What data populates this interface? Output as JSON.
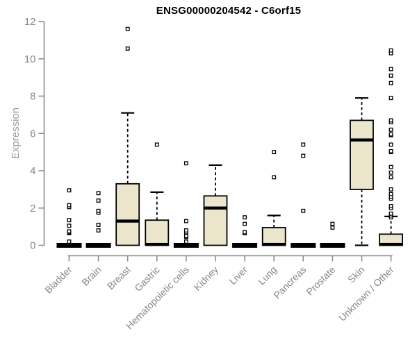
{
  "chart_data": {
    "type": "boxplot",
    "title": "ENSG00000204542 - C6orf15",
    "ylabel": "Expression",
    "xlabel": "",
    "ylim": [
      0,
      12
    ],
    "yticks": [
      0,
      2,
      4,
      6,
      8,
      10,
      12
    ],
    "grid": false,
    "legend": null,
    "categories": [
      "Bladder",
      "Brain",
      "Breast",
      "Gastric",
      "Hematopoietic cells",
      "Kidney",
      "Liver",
      "Lung",
      "Pancreas",
      "Prostate",
      "Skin",
      "Unknown / Other"
    ],
    "series": [
      {
        "label": "Bladder",
        "q1": 0,
        "median": 0,
        "q3": 0,
        "whisker_low": 0,
        "whisker_high": 0,
        "outliers": [
          0.2,
          0.65,
          0.7,
          0.75,
          1.05,
          1.35,
          2.05,
          2.15,
          2.95
        ]
      },
      {
        "label": "Brain",
        "q1": 0,
        "median": 0,
        "q3": 0,
        "whisker_low": 0,
        "whisker_high": 0,
        "outliers": [
          0.8,
          1.1,
          1.75,
          1.85,
          2.4,
          2.8
        ]
      },
      {
        "label": "Breast",
        "q1": 0,
        "median": 1.3,
        "q3": 3.3,
        "whisker_low": 0,
        "whisker_high": 7.1,
        "outliers": [
          10.55,
          11.6
        ]
      },
      {
        "label": "Gastric",
        "q1": 0,
        "median": 0.05,
        "q3": 1.35,
        "whisker_low": 0,
        "whisker_high": 2.85,
        "outliers": [
          5.4
        ]
      },
      {
        "label": "Hematopoietic cells",
        "q1": 0,
        "median": 0,
        "q3": 0,
        "whisker_low": 0,
        "whisker_high": 0,
        "outliers": [
          0.2,
          0.45,
          0.5,
          0.7,
          0.8,
          1.3,
          4.4
        ]
      },
      {
        "label": "Kidney",
        "q1": 0,
        "median": 2.0,
        "q3": 2.65,
        "whisker_low": 0,
        "whisker_high": 4.3,
        "outliers": []
      },
      {
        "label": "Liver",
        "q1": 0,
        "median": 0,
        "q3": 0,
        "whisker_low": 0,
        "whisker_high": 0,
        "outliers": [
          0.65,
          0.7,
          1.15,
          1.5
        ]
      },
      {
        "label": "Lung",
        "q1": 0,
        "median": 0.05,
        "q3": 0.95,
        "whisker_low": 0,
        "whisker_high": 1.6,
        "outliers": [
          3.65,
          5.0
        ]
      },
      {
        "label": "Pancreas",
        "q1": 0,
        "median": 0,
        "q3": 0,
        "whisker_low": 0,
        "whisker_high": 0,
        "outliers": [
          1.85,
          4.8,
          5.4
        ]
      },
      {
        "label": "Prostate",
        "q1": 0,
        "median": 0,
        "q3": 0,
        "whisker_low": 0,
        "whisker_high": 0,
        "outliers": [
          0.95,
          1.15
        ]
      },
      {
        "label": "Skin",
        "q1": 3.0,
        "median": 5.65,
        "q3": 6.7,
        "whisker_low": 0,
        "whisker_high": 7.9,
        "outliers": []
      },
      {
        "label": "Unknown / Other",
        "q1": 0,
        "median": 0.05,
        "q3": 0.6,
        "whisker_low": 0,
        "whisker_high": 1.55,
        "outliers": [
          1.5,
          1.6,
          1.7,
          2.0,
          2.1,
          2.5,
          2.6,
          2.75,
          3.0,
          3.65,
          3.9,
          4.2,
          5.0,
          5.05,
          5.4,
          5.9,
          5.95,
          6.2,
          6.6,
          6.7,
          7.9,
          8.7,
          9.1,
          9.45,
          10.3,
          10.45
        ]
      }
    ],
    "colors": {
      "box_fill": "#EBE5CB",
      "box_stroke": "#000000",
      "median": "#000000",
      "whisker": "#000000",
      "outlier_stroke": "#000000",
      "axis": "#8C8C8C",
      "tick_label": "#878787",
      "title": "#000000",
      "ylabel": "#9A9A9A",
      "background": "#FFFFFF"
    }
  }
}
